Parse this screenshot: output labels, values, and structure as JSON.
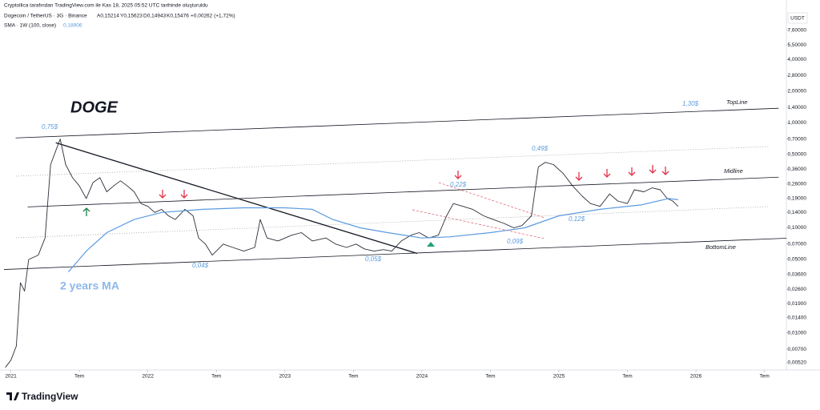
{
  "header": {
    "credit": "Cryptollica tarafından TradingView.com ile Kas 18, 2025 05:52 UTC tarihinde oluşturuldu",
    "ohlc": [
      "A0,15214",
      "Y0,15623",
      "D0,14943",
      "K0,15476"
    ],
    "change": "+0,00262 (+1,72%)",
    "sma_value": "0,18906",
    "currency": "USDT",
    "logo": "TradingView"
  },
  "chart_data": {
    "type": "line",
    "log_scale": true,
    "grid": false,
    "series": [
      {
        "name": "Dogecoin / TetherUS · 3G · Binance",
        "color": "#2a2e39",
        "x": [
          2020.96,
          2021.0,
          2021.04,
          2021.07,
          2021.1,
          2021.13,
          2021.2,
          2021.25,
          2021.29,
          2021.33,
          2021.36,
          2021.4,
          2021.45,
          2021.5,
          2021.55,
          2021.6,
          2021.65,
          2021.7,
          2021.75,
          2021.8,
          2021.85,
          2021.9,
          2021.95,
          2022.0,
          2022.05,
          2022.1,
          2022.15,
          2022.2,
          2022.27,
          2022.33,
          2022.37,
          2022.42,
          2022.47,
          2022.55,
          2022.62,
          2022.7,
          2022.78,
          2022.82,
          2022.87,
          2022.95,
          2023.05,
          2023.12,
          2023.2,
          2023.3,
          2023.37,
          2023.45,
          2023.52,
          2023.58,
          2023.65,
          2023.72,
          2023.78,
          2023.85,
          2023.92,
          2023.98,
          2024.05,
          2024.12,
          2024.18,
          2024.23,
          2024.3,
          2024.37,
          2024.45,
          2024.52,
          2024.6,
          2024.67,
          2024.73,
          2024.8,
          2024.85,
          2024.9,
          2024.96,
          2025.03,
          2025.1,
          2025.17,
          2025.23,
          2025.3,
          2025.37,
          2025.43,
          2025.5,
          2025.55,
          2025.62,
          2025.68,
          2025.74,
          2025.79,
          2025.83,
          2025.87
        ],
        "values": [
          0.0047,
          0.0055,
          0.0075,
          0.03,
          0.025,
          0.05,
          0.055,
          0.08,
          0.4,
          0.55,
          0.7,
          0.4,
          0.3,
          0.25,
          0.19,
          0.27,
          0.3,
          0.22,
          0.25,
          0.28,
          0.25,
          0.22,
          0.17,
          0.16,
          0.14,
          0.15,
          0.13,
          0.12,
          0.15,
          0.13,
          0.08,
          0.07,
          0.055,
          0.07,
          0.065,
          0.06,
          0.065,
          0.12,
          0.08,
          0.075,
          0.085,
          0.09,
          0.075,
          0.08,
          0.07,
          0.065,
          0.07,
          0.063,
          0.06,
          0.062,
          0.06,
          0.075,
          0.085,
          0.09,
          0.08,
          0.085,
          0.13,
          0.17,
          0.16,
          0.15,
          0.13,
          0.12,
          0.11,
          0.1,
          0.105,
          0.13,
          0.38,
          0.42,
          0.4,
          0.33,
          0.25,
          0.2,
          0.17,
          0.16,
          0.21,
          0.18,
          0.17,
          0.23,
          0.22,
          0.24,
          0.23,
          0.19,
          0.18,
          0.16
        ]
      },
      {
        "name": "SMA · 1W (100, close)",
        "color": "#5b9bdf",
        "x": [
          2021.42,
          2021.55,
          2021.7,
          2021.9,
          2022.1,
          2022.4,
          2022.7,
          2023.0,
          2023.2,
          2023.35,
          2023.55,
          2023.75,
          2024.0,
          2024.2,
          2024.5,
          2024.75,
          2025.0,
          2025.3,
          2025.6,
          2025.8,
          2025.87
        ],
        "values": [
          0.038,
          0.06,
          0.09,
          0.12,
          0.14,
          0.15,
          0.155,
          0.155,
          0.15,
          0.12,
          0.1,
          0.09,
          0.08,
          0.082,
          0.09,
          0.1,
          0.13,
          0.15,
          0.165,
          0.19,
          0.185
        ]
      }
    ],
    "lines": [
      {
        "label": "TopLine",
        "x": [
          2021.035,
          2026.604
        ],
        "y": [
          0.716,
          1.372
        ]
      },
      {
        "label": "Midline",
        "x": [
          2021.123,
          2026.604
        ],
        "y": [
          0.158,
          0.303
        ]
      },
      {
        "label": "BottomLine",
        "x": [
          2020.95,
          2026.66
        ],
        "y": [
          0.0401,
          0.0796
        ]
      },
      {
        "x": [
          2021.328,
          2023.966
        ],
        "y": [
          0.644,
          0.057
        ]
      }
    ],
    "annotations": [
      "DOGE",
      "0,75$",
      "1,30$",
      "0,49$",
      "0,22$",
      "0,12$",
      "0,09$",
      "0,04$",
      "0,05$",
      "2 years MA"
    ],
    "xlim": [
      2020.95,
      2026.66
    ],
    "xticks": [
      {
        "value": 2021,
        "label": "2021"
      },
      {
        "value": 2021.5,
        "label": "Tem"
      },
      {
        "value": 2022,
        "label": "2022"
      },
      {
        "value": 2022.5,
        "label": "Tem"
      },
      {
        "value": 2023,
        "label": "2023"
      },
      {
        "value": 2023.5,
        "label": "Tem"
      },
      {
        "value": 2024,
        "label": "2024"
      },
      {
        "value": 2024.5,
        "label": "Tem"
      },
      {
        "value": 2025,
        "label": "2025"
      },
      {
        "value": 2025.5,
        "label": "Tem"
      },
      {
        "value": 2026,
        "label": "2026"
      },
      {
        "value": 2026.5,
        "label": "Tem"
      }
    ],
    "ylim": [
      0.0046,
      11.3
    ],
    "yticks": [
      {
        "value": 7.6,
        "label": "7,60000"
      },
      {
        "value": 5.5,
        "label": "5,50000"
      },
      {
        "value": 4,
        "label": "4,00000"
      },
      {
        "value": 2.8,
        "label": "2,80000"
      },
      {
        "value": 2,
        "label": "2,00000"
      },
      {
        "value": 1.4,
        "label": "1,40000"
      },
      {
        "value": 1,
        "label": "1,00000"
      },
      {
        "value": 0.7,
        "label": "0,70000"
      },
      {
        "value": 0.5,
        "label": "0,50000"
      },
      {
        "value": 0.36,
        "label": "0,36000"
      },
      {
        "value": 0.26,
        "label": "0,26000"
      },
      {
        "value": 0.19,
        "label": "0,19000"
      },
      {
        "value": 0.14,
        "label": "0,14000"
      },
      {
        "value": 0.1,
        "label": "0,10000"
      },
      {
        "value": 0.07,
        "label": "0,07000"
      },
      {
        "value": 0.05,
        "label": "0,05000"
      },
      {
        "value": 0.036,
        "label": "0,03600"
      },
      {
        "value": 0.026,
        "label": "0,02600"
      },
      {
        "value": 0.019,
        "label": "0,01900"
      },
      {
        "value": 0.014,
        "label": "0,01400"
      },
      {
        "value": 0.01,
        "label": "0,01000"
      },
      {
        "value": 0.007,
        "label": "0,00700"
      },
      {
        "value": 0.0052,
        "label": "0,00520"
      }
    ]
  }
}
